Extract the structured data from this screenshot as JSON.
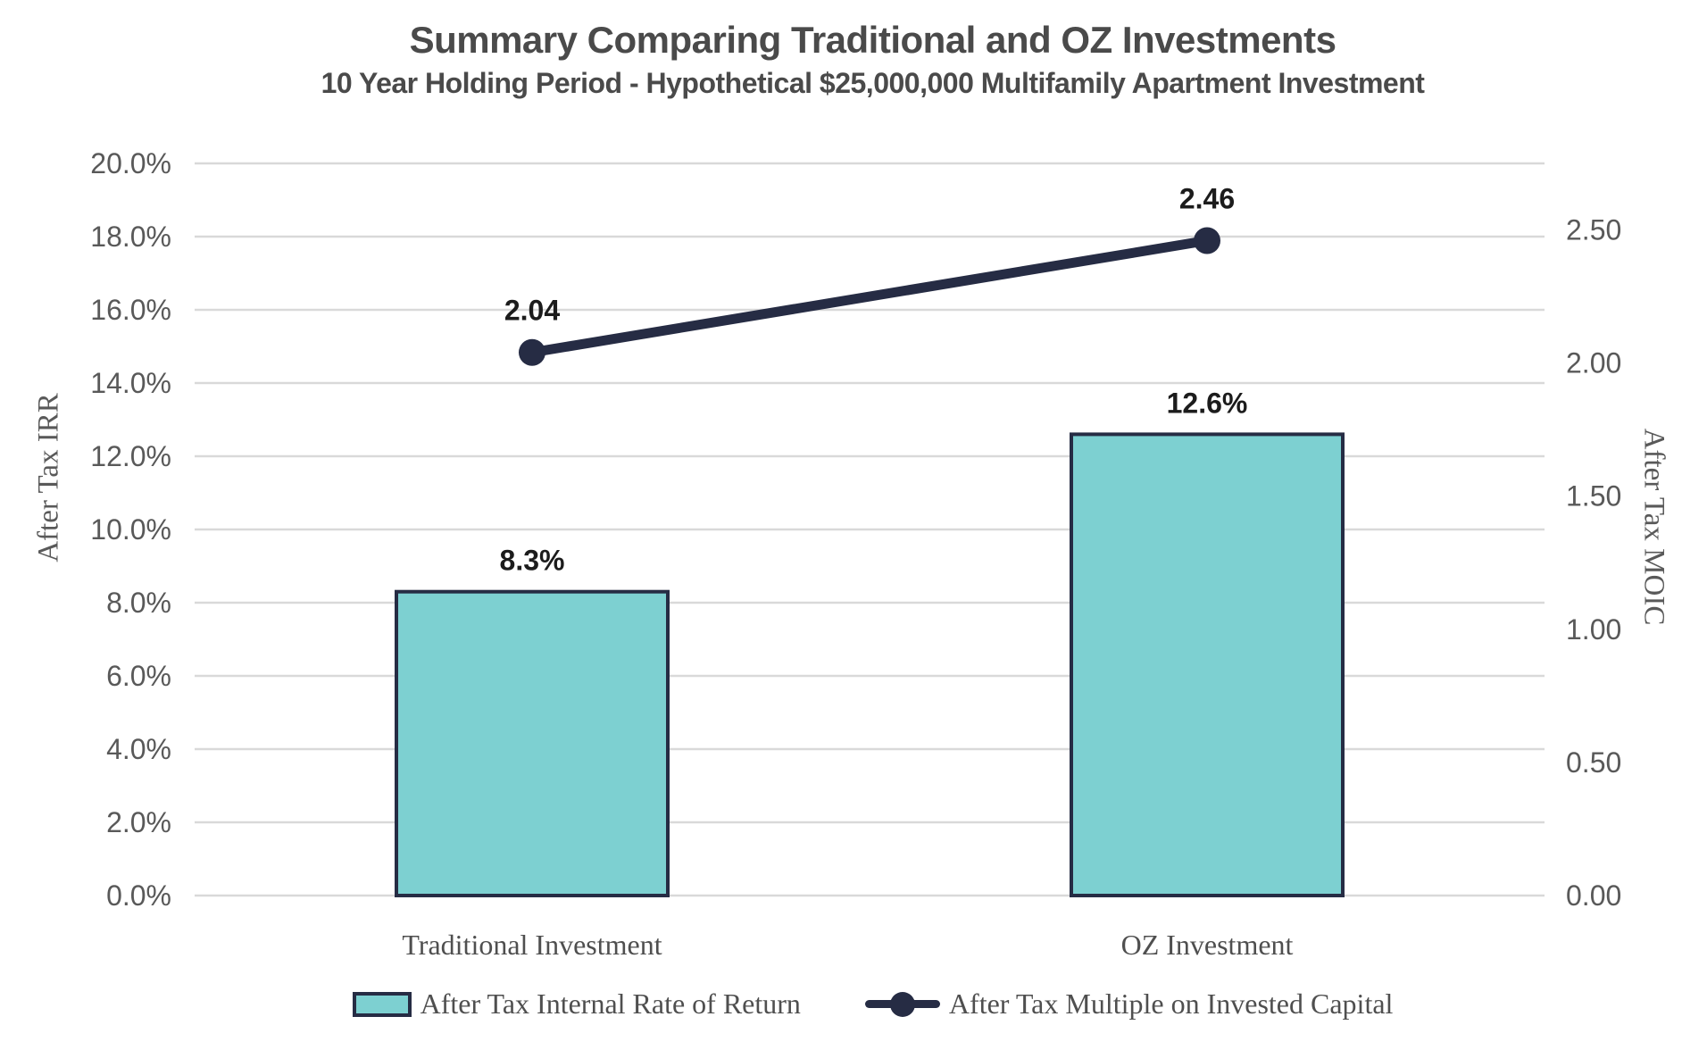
{
  "header": {
    "title": "Summary Comparing Traditional and OZ Investments",
    "subtitle": "10 Year Holding Period - Hypothetical $25,000,000 Multifamily Apartment Investment"
  },
  "chart_data": {
    "type": "bar",
    "combo": "bar+line, dual axis",
    "categories": [
      "Traditional Investment",
      "OZ Investment"
    ],
    "series": [
      {
        "name": "After Tax Internal Rate of Return",
        "type": "bar",
        "axis": "left",
        "values": [
          8.3,
          12.6
        ],
        "data_labels": [
          "8.3%",
          "12.6%"
        ],
        "fill": "#7dd0d1",
        "stroke": "#262c44"
      },
      {
        "name": "After Tax Multiple on Invested Capital",
        "type": "line",
        "axis": "right",
        "values": [
          2.04,
          2.46
        ],
        "data_labels": [
          "2.04",
          "2.46"
        ],
        "stroke": "#262c44"
      }
    ],
    "left_axis": {
      "title": "After Tax IRR",
      "min": 0,
      "max": 20,
      "ticks": [
        {
          "value": 0,
          "label": "0.0%"
        },
        {
          "value": 2,
          "label": "2.0%"
        },
        {
          "value": 4,
          "label": "4.0%"
        },
        {
          "value": 6,
          "label": "6.0%"
        },
        {
          "value": 8,
          "label": "8.0%"
        },
        {
          "value": 10,
          "label": "10.0%"
        },
        {
          "value": 12,
          "label": "12.0%"
        },
        {
          "value": 14,
          "label": "14.0%"
        },
        {
          "value": 16,
          "label": "16.0%"
        },
        {
          "value": 18,
          "label": "18.0%"
        },
        {
          "value": 20,
          "label": "20.0%"
        }
      ]
    },
    "right_axis": {
      "title": "After Tax MOIC",
      "min": 0,
      "max": 2.75,
      "ticks": [
        {
          "value": 0.0,
          "label": "0.00"
        },
        {
          "value": 0.5,
          "label": "0.50"
        },
        {
          "value": 1.0,
          "label": "1.00"
        },
        {
          "value": 1.5,
          "label": "1.50"
        },
        {
          "value": 2.0,
          "label": "2.00"
        },
        {
          "value": 2.5,
          "label": "2.50"
        }
      ]
    },
    "grid": true,
    "legend_position": "bottom",
    "colors": {
      "gridline": "#d9d9d9",
      "tick_text": "#595959",
      "axis_title_text": "#595959",
      "category_text": "#4f4f4f",
      "data_label_text": "#1c1c1c",
      "title_text": "#4a4a4a",
      "bar_fill": "#7dd0d1",
      "accent_dark": "#262c44"
    }
  }
}
